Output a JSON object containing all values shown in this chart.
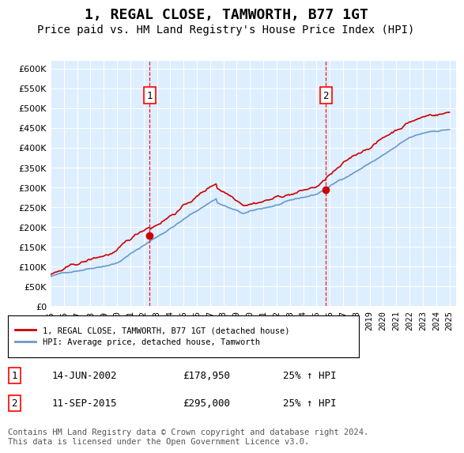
{
  "title": "1, REGAL CLOSE, TAMWORTH, B77 1GT",
  "subtitle": "Price paid vs. HM Land Registry's House Price Index (HPI)",
  "ylim": [
    0,
    620000
  ],
  "yticks": [
    0,
    50000,
    100000,
    150000,
    200000,
    250000,
    300000,
    350000,
    400000,
    450000,
    500000,
    550000,
    600000
  ],
  "xlim_start": 1995.0,
  "xlim_end": 2025.5,
  "xtick_years": [
    1995,
    1996,
    1997,
    1998,
    1999,
    2000,
    2001,
    2002,
    2003,
    2004,
    2005,
    2006,
    2007,
    2008,
    2009,
    2010,
    2011,
    2012,
    2013,
    2014,
    2015,
    2016,
    2017,
    2018,
    2019,
    2020,
    2021,
    2022,
    2023,
    2024,
    2025
  ],
  "sale1_x": 2002.45,
  "sale1_y": 178950,
  "sale1_label": "1",
  "sale1_date": "14-JUN-2002",
  "sale1_price": "£178,950",
  "sale1_hpi": "25% ↑ HPI",
  "sale2_x": 2015.7,
  "sale2_y": 295000,
  "sale2_label": "2",
  "sale2_date": "11-SEP-2015",
  "sale2_price": "£295,000",
  "sale2_hpi": "25% ↑ HPI",
  "line_color_red": "#cc0000",
  "line_color_blue": "#6699cc",
  "dot_color_red": "#cc0000",
  "plot_bg": "#ddeeff",
  "legend_label_red": "1, REGAL CLOSE, TAMWORTH, B77 1GT (detached house)",
  "legend_label_blue": "HPI: Average price, detached house, Tamworth",
  "footer": "Contains HM Land Registry data © Crown copyright and database right 2024.\nThis data is licensed under the Open Government Licence v3.0.",
  "title_fontsize": 13,
  "subtitle_fontsize": 10,
  "note_fontsize": 7.5
}
